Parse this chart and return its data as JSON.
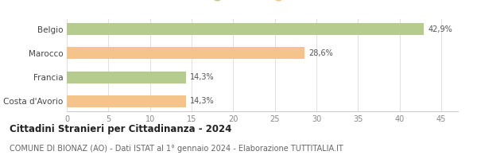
{
  "categories": [
    "Costa d'Avorio",
    "Francia",
    "Marocco",
    "Belgio"
  ],
  "values": [
    14.3,
    14.3,
    28.6,
    42.9
  ],
  "labels": [
    "14,3%",
    "14,3%",
    "28,6%",
    "42,9%"
  ],
  "colors": [
    "#f5c48a",
    "#b5cc8e",
    "#f5c48a",
    "#b5cc8e"
  ],
  "legend_europa_color": "#b5cc8e",
  "legend_africa_color": "#f5c48a",
  "xlim": [
    0,
    47
  ],
  "xticks": [
    0,
    5,
    10,
    15,
    20,
    25,
    30,
    35,
    40,
    45
  ],
  "title": "Cittadini Stranieri per Cittadinanza - 2024",
  "subtitle": "COMUNE DI BIONAZ (AO) - Dati ISTAT al 1° gennaio 2024 - Elaborazione TUTTITALIA.IT",
  "background_color": "#ffffff",
  "bar_height": 0.5,
  "title_fontsize": 8.5,
  "subtitle_fontsize": 7,
  "label_fontsize": 7,
  "tick_fontsize": 7,
  "legend_fontsize": 8,
  "ytick_fontsize": 7.5
}
